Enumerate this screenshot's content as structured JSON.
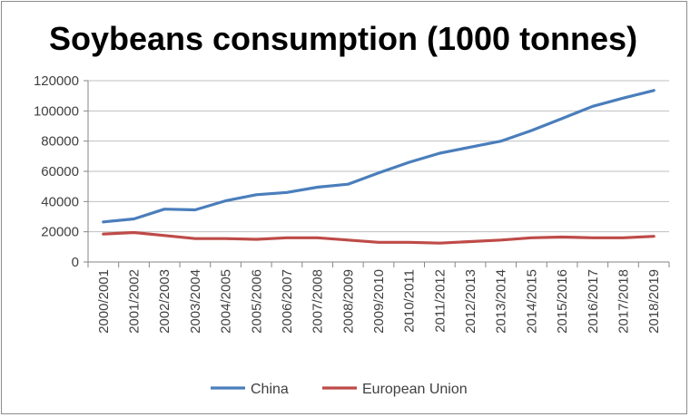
{
  "chart_data": {
    "type": "line",
    "title": "Soybeans consumption (1000 tonnes)",
    "xlabel": "",
    "ylabel": "",
    "ylim": [
      0,
      120000
    ],
    "yticks": [
      0,
      20000,
      40000,
      60000,
      80000,
      100000,
      120000
    ],
    "grid": true,
    "legend_position": "bottom",
    "categories": [
      "2000/2001",
      "2001/2002",
      "2002/2003",
      "2003/2004",
      "2004/2005",
      "2005/2006",
      "2006/2007",
      "2007/2008",
      "2008/2009",
      "2009/2010",
      "2010/2011",
      "2011/2012",
      "2012/2013",
      "2013/2014",
      "2014/2015",
      "2015/2016",
      "2016/2017",
      "2017/2018",
      "2018/2019"
    ],
    "series": [
      {
        "name": "China",
        "color": "#4a7ebb",
        "values": [
          26500,
          28500,
          35000,
          34500,
          40500,
          44500,
          46000,
          49500,
          51500,
          59000,
          66000,
          72000,
          76000,
          80000,
          87000,
          95000,
          103000,
          108500,
          113500
        ]
      },
      {
        "name": "European Union",
        "color": "#be4b48",
        "values": [
          18500,
          19500,
          17500,
          15500,
          15500,
          15000,
          16000,
          16000,
          14500,
          13000,
          13000,
          12500,
          13500,
          14500,
          16000,
          16500,
          16000,
          16000,
          17000
        ]
      }
    ]
  }
}
